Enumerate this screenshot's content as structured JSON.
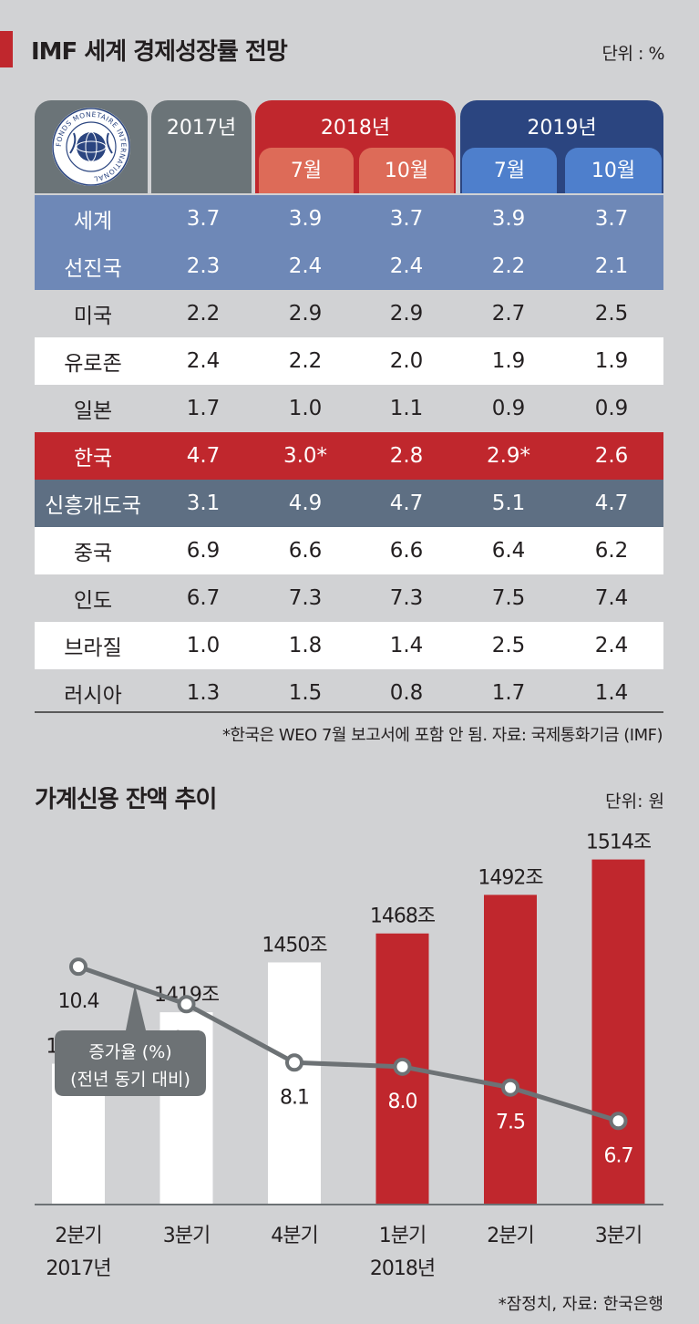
{
  "table": {
    "title": "IMF 세계 경제성장률 전망",
    "unit": "단위 : %",
    "logo_text": "FONDS MONETAIRE INTERNATIONAL",
    "year_2017": "2017년",
    "year_2018": "2018년",
    "year_2019": "2019년",
    "month_jul": "7월",
    "month_oct": "10월",
    "rows": [
      {
        "name": "세계",
        "v": [
          "3.7",
          "3.9",
          "3.7",
          "3.9",
          "3.7"
        ],
        "style": "blue"
      },
      {
        "name": "선진국",
        "v": [
          "2.3",
          "2.4",
          "2.4",
          "2.2",
          "2.1"
        ],
        "style": "blue"
      },
      {
        "name": "미국",
        "v": [
          "2.2",
          "2.9",
          "2.9",
          "2.7",
          "2.5"
        ],
        "style": "gray"
      },
      {
        "name": "유로존",
        "v": [
          "2.4",
          "2.2",
          "2.0",
          "1.9",
          "1.9"
        ],
        "style": "white"
      },
      {
        "name": "일본",
        "v": [
          "1.7",
          "1.0",
          "1.1",
          "0.9",
          "0.9"
        ],
        "style": "gray"
      },
      {
        "name": "한국",
        "v": [
          "4.7",
          "3.0*",
          "2.8",
          "2.9*",
          "2.6"
        ],
        "style": "red"
      },
      {
        "name": "신흥개도국",
        "v": [
          "3.1",
          "4.9",
          "4.7",
          "5.1",
          "4.7"
        ],
        "style": "slate"
      },
      {
        "name": "중국",
        "v": [
          "6.9",
          "6.6",
          "6.6",
          "6.4",
          "6.2"
        ],
        "style": "white"
      },
      {
        "name": "인도",
        "v": [
          "6.7",
          "7.3",
          "7.3",
          "7.5",
          "7.4"
        ],
        "style": "gray"
      },
      {
        "name": "브라질",
        "v": [
          "1.0",
          "1.8",
          "1.4",
          "2.5",
          "2.4"
        ],
        "style": "white"
      },
      {
        "name": "러시아",
        "v": [
          "1.3",
          "1.5",
          "0.8",
          "1.7",
          "1.4"
        ],
        "style": "gray"
      }
    ],
    "note": "*한국은 WEO 7월 보고서에 포함 안 됨. 자료: 국제통화기금 (IMF)"
  },
  "chart_data": {
    "type": "bar",
    "title": "가계신용 잔액 추이",
    "unit": "단위: 원",
    "categories": [
      "2분기",
      "3분기",
      "4분기",
      "1분기",
      "2분기",
      "3분기"
    ],
    "year_labels": [
      "2017년",
      "",
      "",
      "2018년",
      "",
      ""
    ],
    "series": [
      {
        "name": "",
        "values": [
          1387,
          1419,
          1450,
          1468,
          1492,
          1514
        ],
        "labels": [
          "1387조",
          "1419조",
          "1450조",
          "1468조",
          "1492조",
          "1514조"
        ],
        "colors": [
          "#ffffff",
          "#ffffff",
          "#ffffff",
          "#c0272d",
          "#c0272d",
          "#c0272d"
        ]
      },
      {
        "name": "증가율 (%)",
        "type": "line",
        "values": [
          10.4,
          9.5,
          8.1,
          8.0,
          7.5,
          6.7
        ],
        "labels": [
          "10.4",
          "9.5",
          "8.1",
          "8.0",
          "7.5",
          "6.7"
        ],
        "color": "#6d7275"
      }
    ],
    "callout_line1": "증가율 (%)",
    "callout_line2": "(전년 동기 대비)",
    "note": "*잠정치, 자료: 한국은행"
  }
}
